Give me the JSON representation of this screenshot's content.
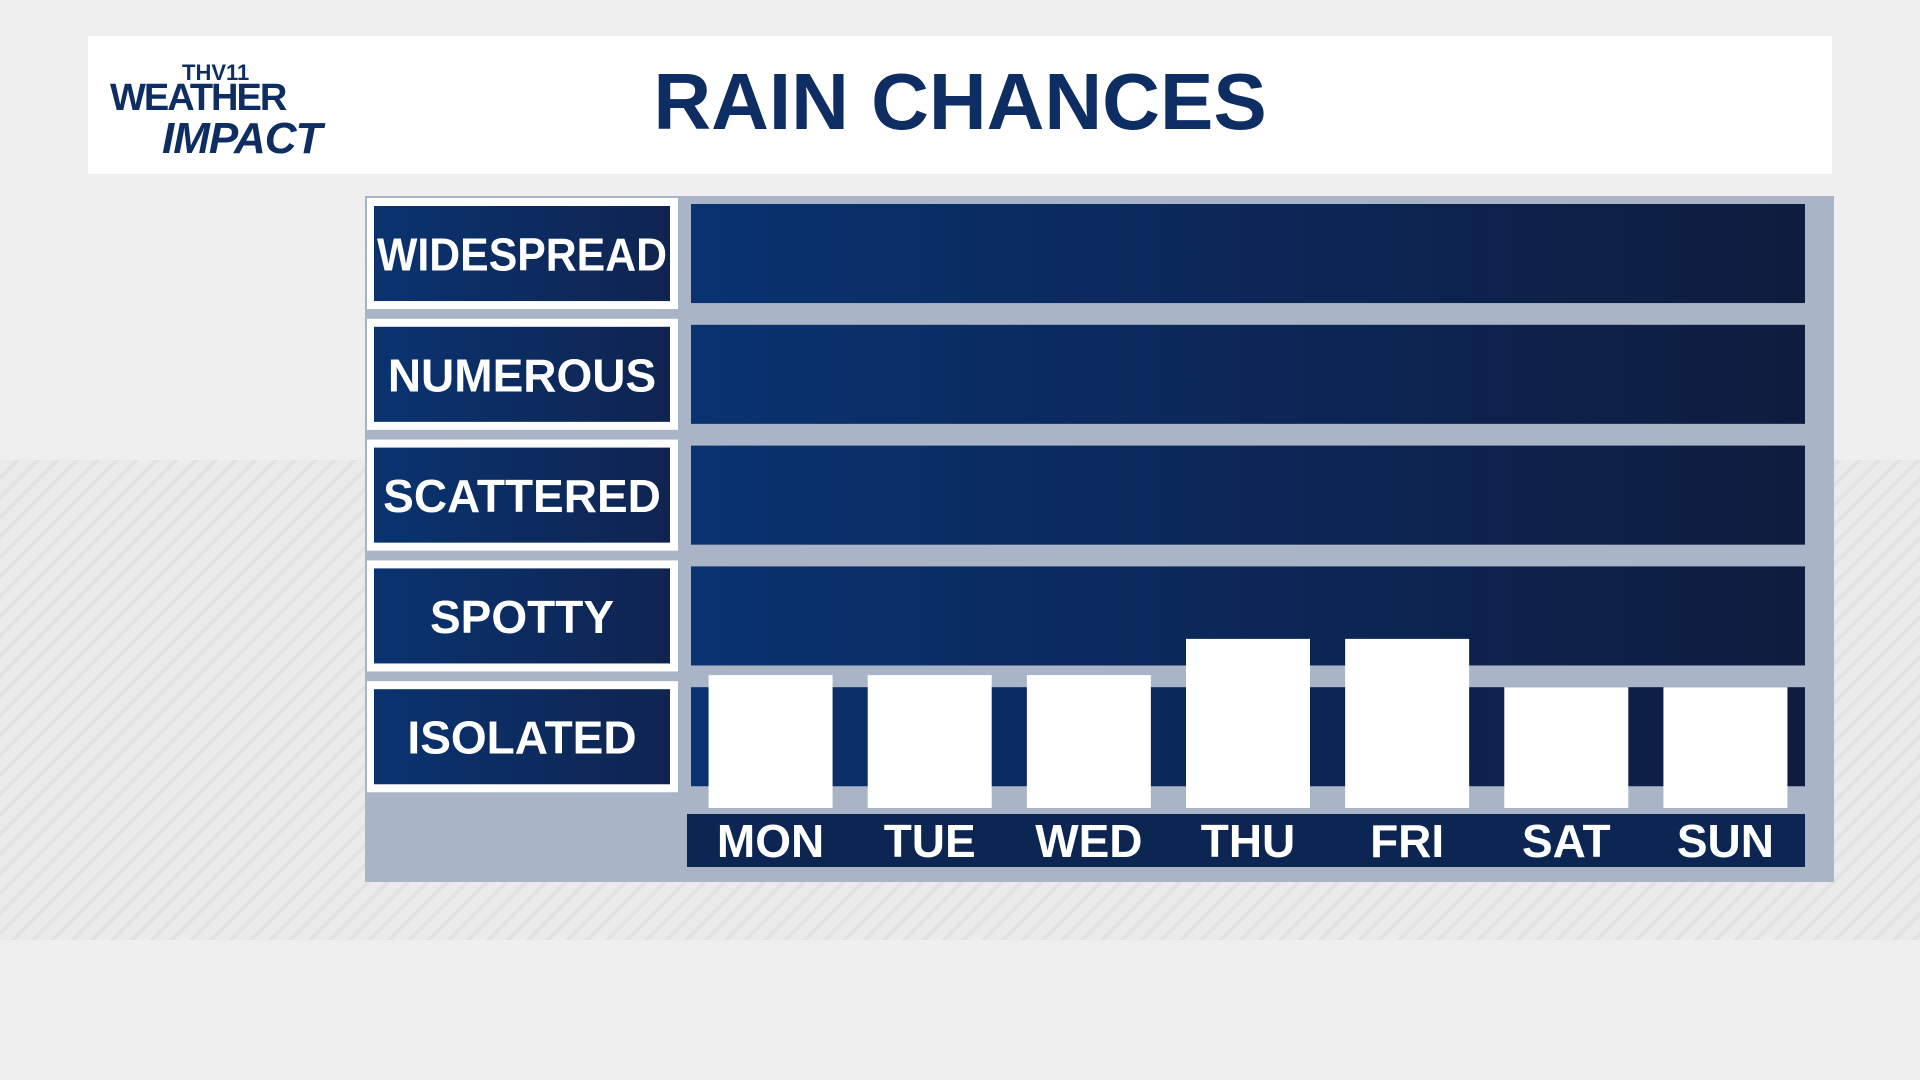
{
  "logo": {
    "station": "THV11",
    "line1": "WEATHER",
    "line2": "IMPACT"
  },
  "chart_data": {
    "type": "bar",
    "title": "RAIN CHANCES",
    "categories": [
      "MON",
      "TUE",
      "WED",
      "THU",
      "FRI",
      "SAT",
      "SUN"
    ],
    "values": [
      1.1,
      1.1,
      1.1,
      1.4,
      1.4,
      1.0,
      1.0
    ],
    "color": "#ffffff",
    "ylim": [
      0,
      5
    ],
    "yticks": [
      {
        "value": 0.5,
        "label": "ISOLATED"
      },
      {
        "value": 1.5,
        "label": "SPOTTY"
      },
      {
        "value": 2.5,
        "label": "SCATTERED"
      },
      {
        "value": 3.5,
        "label": "NUMEROUS"
      },
      {
        "value": 4.5,
        "label": "WIDESPREAD"
      }
    ]
  }
}
